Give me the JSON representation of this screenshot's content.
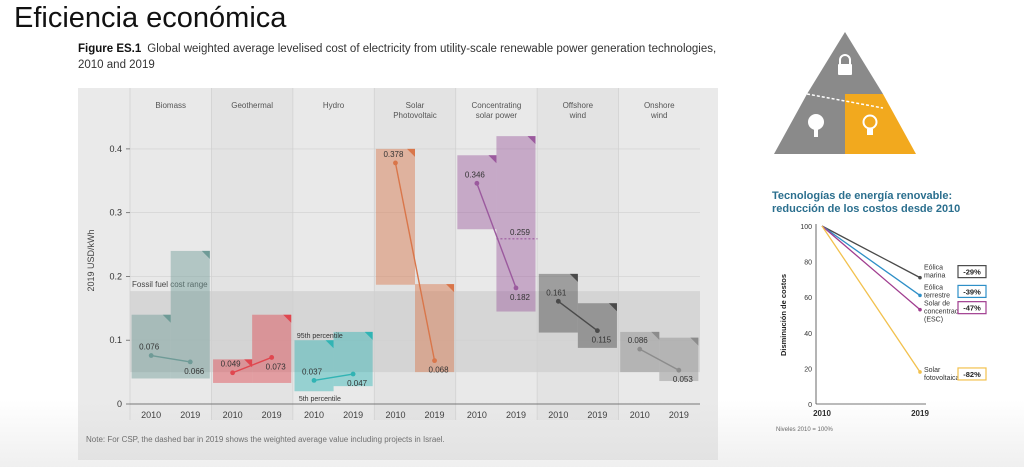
{
  "slide": {
    "title": "Eficiencia económica"
  },
  "figure": {
    "label": "Figure ES.1",
    "caption": "Global weighted average levelised cost of electricity from utility-scale renewable power generation technologies, 2010 and 2019",
    "note": "Note: For CSP, the dashed bar in 2019 shows the weighted average value including projects in Israel."
  },
  "chart_data": [
    {
      "type": "bar",
      "ylabel": "2019 USD/kWh",
      "ylim": [
        0,
        0.45
      ],
      "yticks": [
        "0",
        "0.1",
        "0.2",
        "0.3",
        "0.4"
      ],
      "band_label": "Fossil fuel cost range",
      "fossil_range": [
        0.05,
        0.177
      ],
      "percentile_labels": {
        "p95": "95th percentile",
        "p5": "5th percentile"
      },
      "colors": {
        "Biomass": "#6f9b97",
        "Geothermal": "#e0474f",
        "Hydro": "#31b4b4",
        "Solar\nPhotovoltaic": "#d9764a",
        "Concentrating\nsolar power": "#9b5a9e",
        "Offshore\nwind": "#4a4a4a",
        "Onshore\nwind": "#8c8c8c"
      },
      "technologies": [
        {
          "name": "Biomass",
          "years": [
            "2010",
            "2019"
          ],
          "values": [
            0.076,
            0.066
          ],
          "p5": [
            0.04,
            0.04
          ],
          "p95": [
            0.14,
            0.24
          ]
        },
        {
          "name": "Geothermal",
          "years": [
            "2010",
            "2019"
          ],
          "values": [
            0.049,
            0.073
          ],
          "p5": [
            0.033,
            0.033
          ],
          "p95": [
            0.07,
            0.14
          ]
        },
        {
          "name": "Hydro",
          "years": [
            "2010",
            "2019"
          ],
          "values": [
            0.037,
            0.047
          ],
          "p5": [
            0.02,
            0.028
          ],
          "p95": [
            0.1,
            0.113
          ]
        },
        {
          "name": "Solar\nPhotovoltaic",
          "years": [
            "2010",
            "2019"
          ],
          "values": [
            0.378,
            0.068
          ],
          "p5": [
            0.187,
            0.05
          ],
          "p95": [
            0.4,
            0.188
          ]
        },
        {
          "name": "Concentrating\nsolar power",
          "years": [
            "2010",
            "2019"
          ],
          "values": [
            0.346,
            0.182
          ],
          "p5": [
            0.274,
            0.145
          ],
          "p95": [
            0.39,
            0.42
          ],
          "dashed": 0.259
        },
        {
          "name": "Offshore\nwind",
          "years": [
            "2010",
            "2019"
          ],
          "values": [
            0.161,
            0.115
          ],
          "p5": [
            0.112,
            0.088
          ],
          "p95": [
            0.204,
            0.158
          ]
        },
        {
          "name": "Onshore\nwind",
          "years": [
            "2010",
            "2019"
          ],
          "values": [
            0.086,
            0.053
          ],
          "p5": [
            0.05,
            0.036
          ],
          "p95": [
            0.113,
            0.104
          ]
        }
      ]
    },
    {
      "type": "line",
      "title": "Tecnologías de energía renovable: reducción de los costos desde 2010",
      "ylabel": "Disminución de costos",
      "x": [
        "2010",
        "2019"
      ],
      "ylim": [
        0,
        100
      ],
      "yticks": [
        "0",
        "20",
        "40",
        "60",
        "80",
        "100"
      ],
      "footnote": "Niveles 2010 = 100%",
      "series": [
        {
          "name": "Eólica marina",
          "values": [
            100,
            71
          ],
          "change": "-29%",
          "color": "#4a4a4a"
        },
        {
          "name": "Eólica terrestre",
          "values": [
            100,
            61
          ],
          "change": "-39%",
          "color": "#2e8fc7"
        },
        {
          "name": "Solar de concentración (ESC)",
          "values": [
            100,
            53
          ],
          "change": "-47%",
          "color": "#a03d8f"
        },
        {
          "name": "Solar fotovoltaica",
          "values": [
            100,
            18
          ],
          "change": "-82%",
          "color": "#f2c14e"
        }
      ]
    }
  ]
}
